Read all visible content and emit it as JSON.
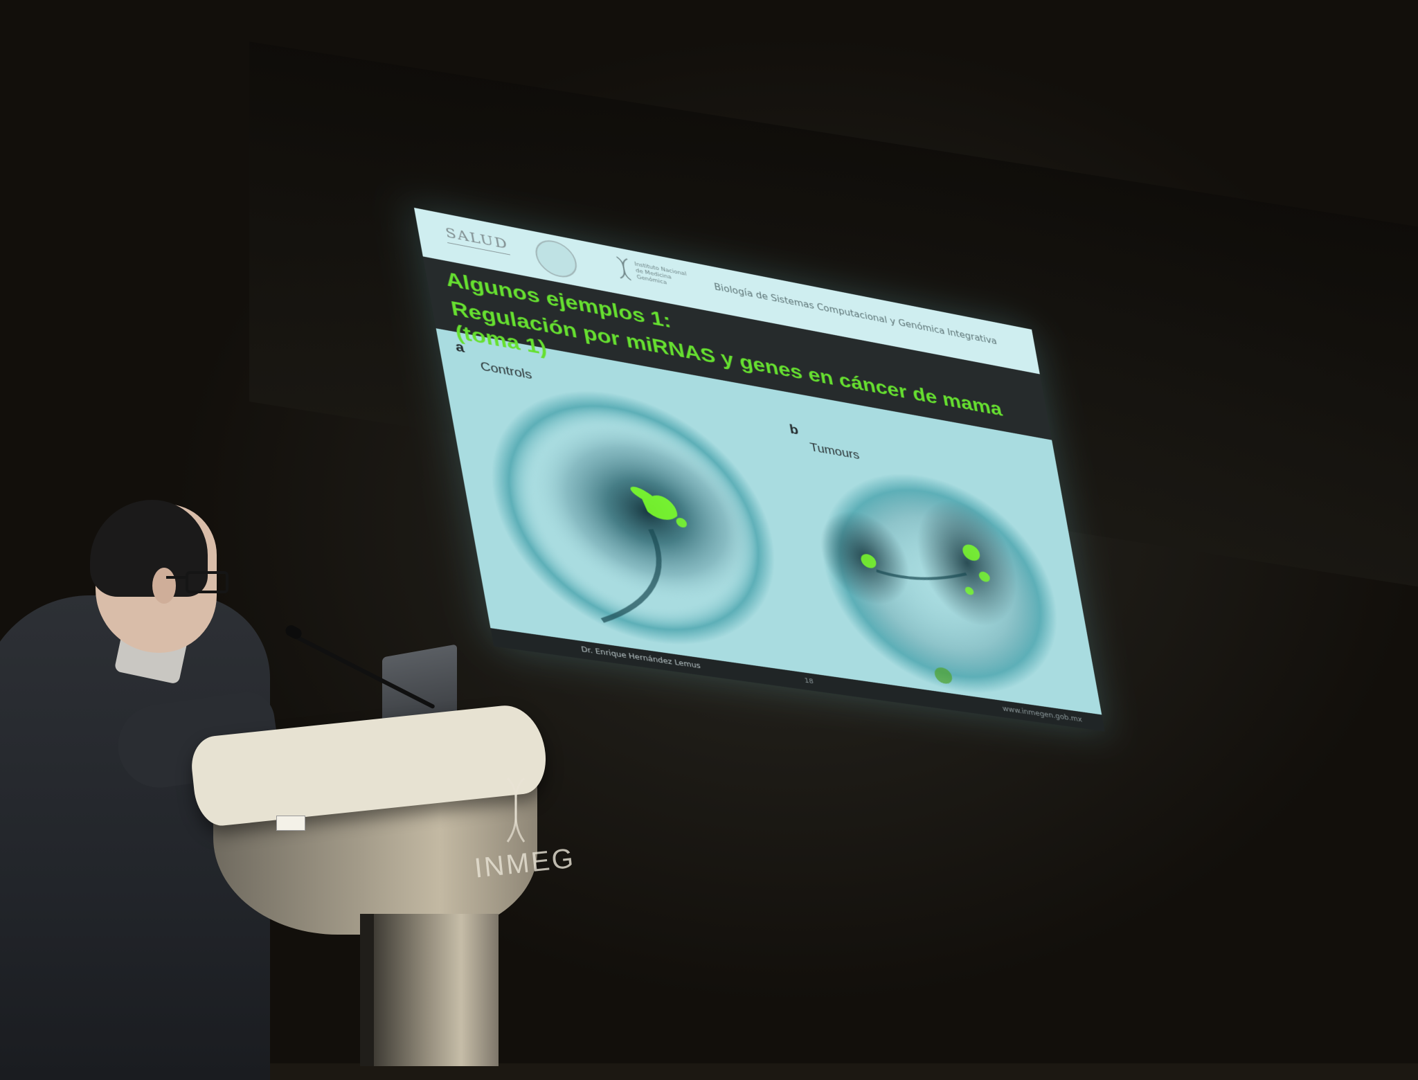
{
  "slide": {
    "header": {
      "logo_text": "SALUD",
      "institute": "Instituto Nacional de Medicina Genómica",
      "department": "Biología de Sistemas Computacional y Genómica Integrativa"
    },
    "title_line1": "Algunos ejemplos 1:",
    "title_line2": "Regulación por miRNAS y genes en cáncer de mama (toma 1)",
    "panel_a": {
      "letter": "a",
      "label": "Controls"
    },
    "panel_b": {
      "letter": "b",
      "label": "Tumours"
    },
    "footer": {
      "author": "Dr. Enrique Hernández Lemus",
      "page": "18",
      "url": "www.inmegen.gob.mx"
    }
  },
  "podium": {
    "brand_text": "INMEG"
  },
  "colors": {
    "slide_bg": "#a9dce0",
    "title_green": "#66e030",
    "title_bar": "#262b2c",
    "network_teal": "#1f8a96",
    "network_highlight": "#7cff2a"
  }
}
